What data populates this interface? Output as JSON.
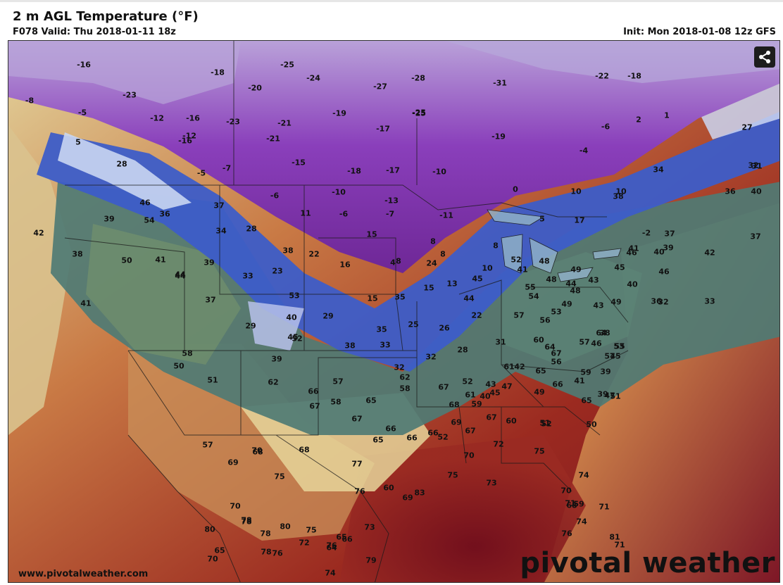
{
  "header": {
    "title": "2 m AGL Temperature (°F)",
    "valid": "F078 Valid: Thu 2018-01-11 18z",
    "init": "Init: Mon 2018-01-08 12z GFS"
  },
  "footer": {
    "url": "www.pivotalweather.com",
    "brand": "pivotal weather"
  },
  "icons": {
    "share": "share-icon"
  },
  "colors": {
    "very_cold": "#7a2ea0",
    "cold": "#9b4fc4",
    "freezing": "#3559c7",
    "cool": "#3d6f73",
    "mild": "#e8dfa6",
    "warm": "#c96a3e",
    "hot": "#8e1b1b",
    "ocean_hot": "#7a0f1a"
  },
  "temps": [
    "-16",
    "-18",
    "-25",
    "-24",
    "-28",
    "-27",
    "-31",
    "-22",
    "-18",
    "-8",
    "-23",
    "-20",
    "-5",
    "-12",
    "-16",
    "-23",
    "-21",
    "-19",
    "-25",
    "-25",
    "-17",
    "-6",
    "2",
    "1",
    "27",
    "5",
    "-12",
    "-21",
    "-16",
    "-15",
    "-18",
    "-17",
    "-10",
    "-19",
    "-4",
    "28",
    "-5",
    "-7",
    "10",
    "34",
    "32",
    "31",
    "40",
    "-6",
    "-10",
    "-13",
    "0",
    "10",
    "38",
    "36",
    "37",
    "11",
    "-6",
    "-7",
    "-11",
    "5",
    "17",
    "39",
    "46",
    "36",
    "34",
    "28",
    "15",
    "-2",
    "37",
    "37",
    "42",
    "54",
    "38",
    "22",
    "16",
    "8",
    "41",
    "48",
    "49",
    "40",
    "38",
    "50",
    "41",
    "39",
    "33",
    "23",
    "24",
    "8",
    "10",
    "52",
    "41",
    "39",
    "46",
    "45",
    "46",
    "42",
    "44",
    "44",
    "8",
    "4",
    "8",
    "45",
    "55",
    "48",
    "48",
    "43",
    "40",
    "44",
    "43",
    "41",
    "53",
    "35",
    "15",
    "13",
    "15",
    "22",
    "54",
    "53",
    "49",
    "36",
    "32",
    "33",
    "37",
    "46",
    "40",
    "29",
    "44",
    "57",
    "56",
    "49",
    "38",
    "45",
    "29",
    "35",
    "25",
    "26",
    "31",
    "60",
    "64",
    "64",
    "53",
    "57",
    "52",
    "38",
    "33",
    "28",
    "56",
    "67",
    "55",
    "58",
    "50",
    "39",
    "32",
    "32",
    "61",
    "65",
    "59",
    "39",
    "45",
    "57",
    "62",
    "67",
    "52",
    "61",
    "40",
    "43",
    "42",
    "41",
    "47",
    "39",
    "51",
    "51",
    "62",
    "66",
    "57",
    "58",
    "65",
    "58",
    "68",
    "59",
    "45",
    "47",
    "49",
    "66",
    "65",
    "67",
    "67",
    "66",
    "66",
    "69",
    "67",
    "67",
    "60",
    "51",
    "52",
    "50",
    "57",
    "68",
    "70",
    "68",
    "65",
    "66",
    "52",
    "70",
    "72",
    "75",
    "74",
    "70",
    "68",
    "59",
    "69",
    "75",
    "77",
    "76",
    "60",
    "69",
    "83",
    "75",
    "73",
    "71",
    "71",
    "81",
    "76",
    "74",
    "71",
    "78",
    "80",
    "72",
    "75",
    "64",
    "65",
    "66",
    "73",
    "79",
    "74",
    "76",
    "78",
    "78",
    "70",
    "80",
    "65",
    "70",
    "78",
    "76"
  ]
}
